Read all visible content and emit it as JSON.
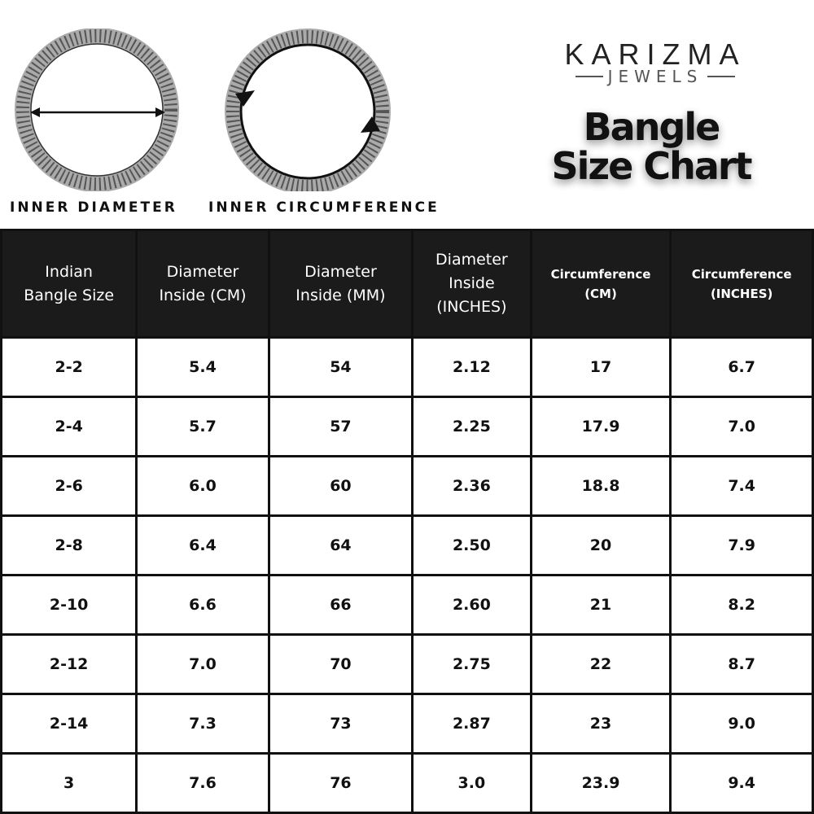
{
  "diagrams": {
    "diameter_label": "INNER DIAMETER",
    "circumference_label": "INNER CIRCUMFERENCE"
  },
  "brand": {
    "name": "KARIZMA",
    "sub": "JEWELS"
  },
  "title": {
    "line1": "Bangle",
    "line2": "Size Chart"
  },
  "table": {
    "headers": [
      [
        "Indian",
        "Bangle Size"
      ],
      [
        "Diameter",
        "Inside (CM)"
      ],
      [
        "Diameter",
        "Inside (MM)"
      ],
      [
        "Diameter",
        "Inside",
        "(INCHES)"
      ],
      [
        "Circumference",
        "(CM)"
      ],
      [
        "Circumference",
        "(INCHES)"
      ]
    ],
    "rows": [
      [
        "2-2",
        "5.4",
        "54",
        "2.12",
        "17",
        "6.7"
      ],
      [
        "2-4",
        "5.7",
        "57",
        "2.25",
        "17.9",
        "7.0"
      ],
      [
        "2-6",
        "6.0",
        "60",
        "2.36",
        "18.8",
        "7.4"
      ],
      [
        "2-8",
        "6.4",
        "64",
        "2.50",
        "20",
        "7.9"
      ],
      [
        "2-10",
        "6.6",
        "66",
        "2.60",
        "21",
        "8.2"
      ],
      [
        "2-12",
        "7.0",
        "70",
        "2.75",
        "22",
        "8.7"
      ],
      [
        "2-14",
        "7.3",
        "73",
        "2.87",
        "23",
        "9.0"
      ],
      [
        "3",
        "7.6",
        "76",
        "3.0",
        "23.9",
        "9.4"
      ]
    ]
  }
}
